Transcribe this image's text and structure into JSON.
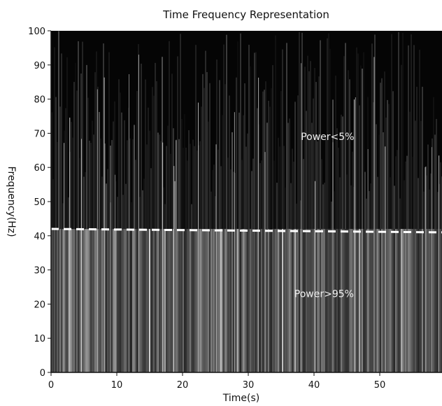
{
  "chart_data": {
    "type": "heatmap",
    "title": "Time Frequency Representation",
    "xlabel": "Time(s)",
    "ylabel": "Frequency(Hz)",
    "xlim": [
      0,
      60
    ],
    "ylim": [
      0,
      100
    ],
    "xticks": [
      "0",
      "10",
      "20",
      "30",
      "40",
      "50"
    ],
    "xtick_values": [
      0,
      10,
      20,
      30,
      40,
      50
    ],
    "yticks": [
      "0",
      "10",
      "20",
      "30",
      "40",
      "50",
      "60",
      "70",
      "80",
      "90",
      "100"
    ],
    "ytick_values": [
      0,
      10,
      20,
      30,
      40,
      50,
      60,
      70,
      80,
      90,
      100
    ],
    "threshold_line": {
      "style": "dashed",
      "color": "#ffffff",
      "y_start": 42,
      "y_end": 41
    },
    "annotations": [
      {
        "text": "Power<5%",
        "x": 38,
        "y": 68
      },
      {
        "text": "Power>95%",
        "x": 37,
        "y": 22
      }
    ],
    "colormap": "grayscale (black = low power, white = high power)",
    "grid": false
  }
}
